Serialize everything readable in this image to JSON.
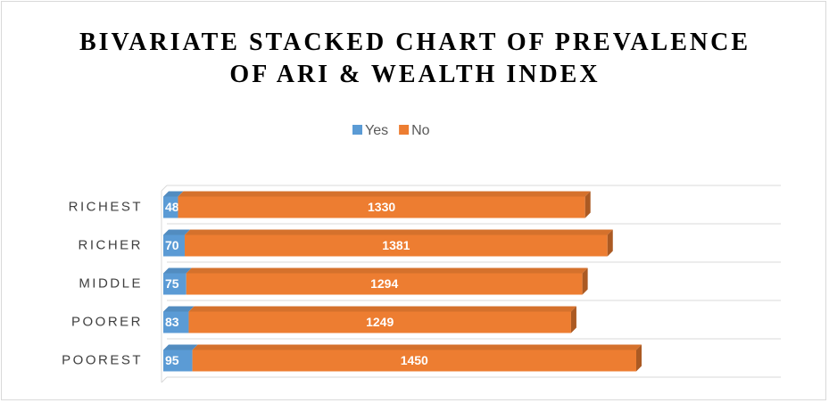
{
  "chart_data": {
    "type": "bar",
    "orientation": "horizontal",
    "stacked": true,
    "title": "BIVARIATE STACKED CHART OF PREVALENCE OF ARI & WEALTH INDEX",
    "categories": [
      "RICHEST",
      "RICHER",
      "MIDDLE",
      "POORER",
      "POOREST"
    ],
    "series": [
      {
        "name": "Yes",
        "color": "#5b9bd5",
        "values": [
          48,
          70,
          75,
          83,
          95
        ]
      },
      {
        "name": "No",
        "color": "#ed7d31",
        "values": [
          1330,
          1381,
          1294,
          1249,
          1450
        ]
      }
    ],
    "legend": "top"
  }
}
